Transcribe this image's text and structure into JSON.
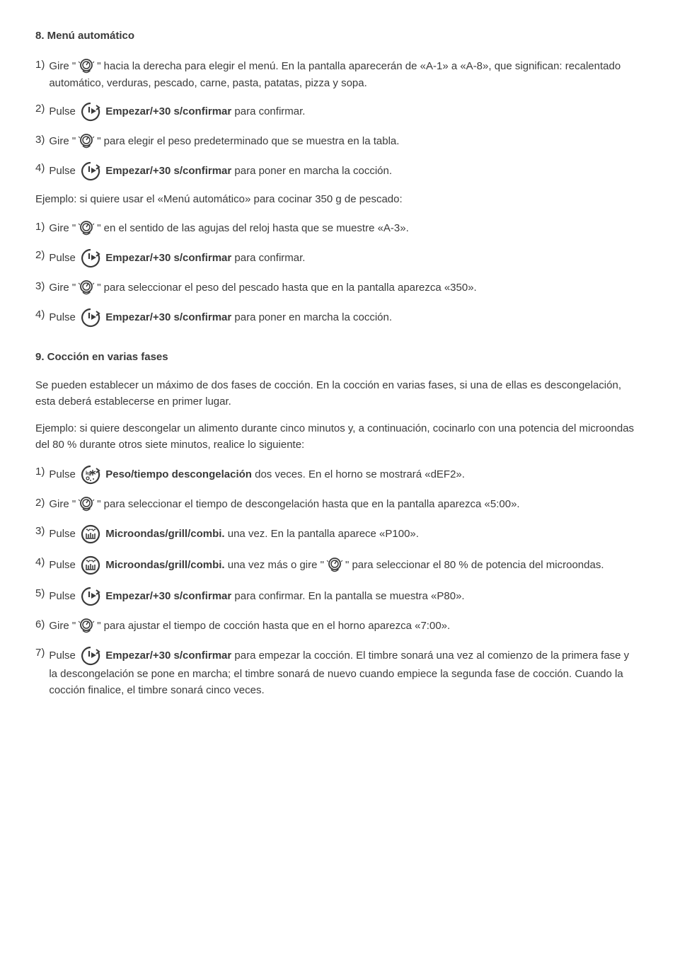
{
  "section8": {
    "heading": "8.  Menú automático",
    "items": [
      {
        "num": "1)",
        "pre": "Gire \"",
        "icon": "dial",
        "post": "\" hacia la derecha para elegir el menú. En la pantalla aparecerán de «A-1» a «A-8», que significan: recalentado automático, verduras, pescado, carne, pasta, patatas, pizza y sopa."
      },
      {
        "num": "2)",
        "pre": "Pulse ",
        "icon": "start",
        "bold": "Empezar/+30 s/confirmar",
        "post": " para confirmar."
      },
      {
        "num": "3)",
        "pre": "Gire \"",
        "icon": "dial",
        "post": "\" para elegir el peso predeterminado que se muestra en la tabla."
      },
      {
        "num": "4) ",
        "pre": "Pulse ",
        "icon": "start",
        "bold": "Empezar/+30 s/confirmar",
        "post": " para poner en marcha la cocción."
      }
    ],
    "example_label": "Ejemplo: si quiere usar el «Menú automático» para cocinar 350 g de pescado:",
    "example_items": [
      {
        "num": "1)",
        "pre": "Gire \"",
        "icon": "dial",
        "post": "\" en el sentido de las agujas del reloj hasta que se muestre «A-3»."
      },
      {
        "num": "2)",
        "pre": "Pulse ",
        "icon": "start",
        "bold": "Empezar/+30 s/confirmar",
        "post": " para confirmar."
      },
      {
        "num": "3)",
        "pre": "Gire \"",
        "icon": "dial",
        "post": "\" para seleccionar el peso del pescado hasta que en la pantalla aparezca «350»."
      },
      {
        "num": "4) ",
        "pre": "Pulse ",
        "icon": "start",
        "bold": "Empezar/+30 s/confirmar",
        "post": " para poner en marcha la cocción."
      }
    ]
  },
  "section9": {
    "heading": "9.  Cocción en varias fases",
    "intro": "Se pueden establecer un máximo de dos fases de cocción. En la cocción en varias fases, si una de ellas es descongelación, esta deberá establecerse en primer lugar.",
    "example_label": "Ejemplo: si quiere descongelar un alimento durante cinco minutos y, a continuación, cocinarlo con una potencia del microondas del 80 % durante otros siete minutos, realice lo siguiente:",
    "items": [
      {
        "num": "1) ",
        "pre": "Pulse ",
        "icon": "defrost",
        "bold": "Peso/tiempo descongelación",
        "post": " dos veces. En el horno se mostrará «dEF2»."
      },
      {
        "num": "2)",
        "pre": "Gire \"",
        "icon": "dial",
        "post": "\" para seleccionar el tiempo de descongelación hasta que en la pantalla aparezca «5:00»."
      },
      {
        "num": "3)",
        "pre": "Pulse ",
        "icon": "micro",
        "bold": "Microondas/grill/combi.",
        "post": " una vez. En la pantalla aparece «P100»."
      },
      {
        "num": "4)",
        "pre": "Pulse ",
        "icon": "micro",
        "bold": "Microondas/grill/combi.",
        "post": " una vez más o gire \"",
        "icon2": "dial",
        "post2": "\" para seleccionar el 80 % de potencia del microondas."
      },
      {
        "num": "5) ",
        "pre": "Pulse ",
        "icon": "start",
        "bold": "Empezar/+30 s/confirmar",
        "post": " para confirmar. En la pantalla se muestra «P80»."
      },
      {
        "num": "6) ",
        "pre": "Gire \"",
        "icon": "dial",
        "post": "\" para ajustar el tiempo de cocción hasta que en el horno aparezca «7:00»."
      },
      {
        "num": "7) ",
        "pre": "Pulse ",
        "icon": "start",
        "bold": "Empezar/+30 s/confirmar",
        "post": " para empezar la cocción. El timbre sonará una vez al comienzo de la primera fase y la descongelación se pone en marcha; el timbre sonará de nuevo cuando empiece la segunda fase de cocción. Cuando la cocción finalice, el timbre sonará cinco veces."
      }
    ]
  },
  "icons": {
    "dial_svg": "<svg viewBox='0 0 26 26' width='26' height='26'><circle cx='13' cy='11' r='8' fill='none' stroke='#3a3a3a' stroke-width='1.8'/><circle cx='13' cy='11' r='5' fill='none' stroke='#3a3a3a' stroke-width='1.5'/><line x1='13' y1='11' x2='16' y2='6' stroke='#3a3a3a' stroke-width='1.5'/><line x1='2' y1='6' x2='4' y2='8' stroke='#3a3a3a' stroke-width='1'/><line x1='24' y1='6' x2='22' y2='8' stroke='#3a3a3a' stroke-width='1'/><path d='M 8 19 Q 13 24 18 19' fill='none' stroke='#3a3a3a' stroke-width='1.5'/><polyline points='17,17 18,19 16,20' fill='none' stroke='#3a3a3a' stroke-width='1.3'/></svg>",
    "start_svg": "<svg viewBox='0 0 30 30' width='30' height='30'><path d='M 15 3 A 12 12 0 1 0 26 10' fill='none' stroke='#3a3a3a' stroke-width='2.2'/><polyline points='23,6 27,9 23,12' fill='none' stroke='#3a3a3a' stroke-width='2'/><line x1='13' y1='8' x2='13' y2='16' stroke='#3a3a3a' stroke-width='2.2'/><polygon points='16,10 16,18 23,14' fill='#3a3a3a'/></svg>",
    "defrost_svg": "<svg viewBox='0 0 30 30' width='30' height='30'><path d='M 15 3 A 12 12 0 1 0 26 10' fill='none' stroke='#3a3a3a' stroke-width='2.2'/><polyline points='23,6 27,9 23,12' fill='none' stroke='#3a3a3a' stroke-width='2'/><text x='8' y='15' font-size='7' fill='#3a3a3a' font-weight='bold'>kg</text><line x1='18' y1='8' x2='18' y2='16' stroke='#3a3a3a' stroke-width='1.5'/><line x1='14' y1='10' x2='22' y2='14' stroke='#3a3a3a' stroke-width='1.5'/><line x1='14' y1='14' x2='22' y2='10' stroke='#3a3a3a' stroke-width='1.5'/><circle cx='11' cy='20' r='2' fill='none' stroke='#3a3a3a' stroke-width='1.3'/><circle cx='15' cy='23' r='1' fill='#3a3a3a'/><circle cx='19' cy='21' r='1' fill='#3a3a3a'/></svg>",
    "micro_svg": "<svg viewBox='0 0 30 30' width='30' height='30'><circle cx='15' cy='15' r='12' fill='none' stroke='#3a3a3a' stroke-width='2.2'/><path d='M 9 9 Q 10 7 11 9 Q 12 11 13 9 Q 14 7 15 9' fill='none' stroke='#3a3a3a' stroke-width='1.3'/><path d='M 16 9 Q 17 7 18 9 Q 19 11 20 9 Q 21 7 22 9' fill='none' stroke='#3a3a3a' stroke-width='1.3'/><line x1='9' y1='20' x2='9' y2='14' stroke='#3a3a3a' stroke-width='1.6'/><line x1='12' y1='20' x2='12' y2='15' stroke='#3a3a3a' stroke-width='1.6'/><line x1='15' y1='20' x2='15' y2='13' stroke='#3a3a3a' stroke-width='1.6'/><line x1='18' y1='20' x2='18' y2='15' stroke='#3a3a3a' stroke-width='1.6'/><line x1='21' y1='20' x2='21' y2='14' stroke='#3a3a3a' stroke-width='1.6'/><line x1='8' y1='21' x2='22' y2='21' stroke='#3a3a3a' stroke-width='1.6'/></svg>"
  }
}
